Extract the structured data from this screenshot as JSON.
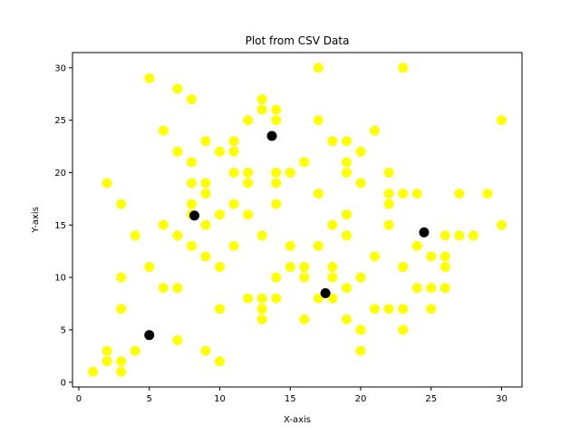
{
  "chart_data": {
    "type": "scatter",
    "title": "Plot from CSV Data",
    "xlabel": "X-axis",
    "ylabel": "Y-axis",
    "xlim": [
      -0.45,
      31.45
    ],
    "ylim": [
      -0.45,
      31.45
    ],
    "xticks": [
      0,
      5,
      10,
      15,
      20,
      25,
      30
    ],
    "yticks": [
      0,
      5,
      10,
      15,
      20,
      25,
      30
    ],
    "grid": false,
    "series": [
      {
        "color": "#ffff00",
        "points": [
          [
            1,
            1
          ],
          [
            2,
            2
          ],
          [
            2,
            3
          ],
          [
            2,
            19
          ],
          [
            3,
            1
          ],
          [
            3,
            2
          ],
          [
            3,
            7
          ],
          [
            3,
            10
          ],
          [
            3,
            17
          ],
          [
            4,
            3
          ],
          [
            4,
            14
          ],
          [
            5,
            11
          ],
          [
            5,
            29
          ],
          [
            6,
            9
          ],
          [
            6,
            15
          ],
          [
            6,
            24
          ],
          [
            7,
            4
          ],
          [
            7,
            9
          ],
          [
            7,
            14
          ],
          [
            7,
            22
          ],
          [
            7,
            28
          ],
          [
            8,
            13
          ],
          [
            8,
            16
          ],
          [
            8,
            17
          ],
          [
            8,
            19
          ],
          [
            8,
            21
          ],
          [
            8,
            27
          ],
          [
            9,
            3
          ],
          [
            9,
            12
          ],
          [
            9,
            15
          ],
          [
            9,
            18
          ],
          [
            9,
            19
          ],
          [
            9,
            23
          ],
          [
            10,
            2
          ],
          [
            10,
            7
          ],
          [
            10,
            11
          ],
          [
            10,
            16
          ],
          [
            10,
            22
          ],
          [
            11,
            13
          ],
          [
            11,
            17
          ],
          [
            11,
            20
          ],
          [
            11,
            22
          ],
          [
            11,
            23
          ],
          [
            12,
            8
          ],
          [
            12,
            16
          ],
          [
            12,
            19
          ],
          [
            12,
            20
          ],
          [
            12,
            25
          ],
          [
            13,
            6
          ],
          [
            13,
            7
          ],
          [
            13,
            8
          ],
          [
            13,
            14
          ],
          [
            13,
            26
          ],
          [
            13,
            27
          ],
          [
            14,
            8
          ],
          [
            14,
            10
          ],
          [
            14,
            17
          ],
          [
            14,
            19
          ],
          [
            14,
            20
          ],
          [
            14,
            25
          ],
          [
            14,
            26
          ],
          [
            15,
            11
          ],
          [
            15,
            13
          ],
          [
            15,
            20
          ],
          [
            16,
            6
          ],
          [
            16,
            10
          ],
          [
            16,
            11
          ],
          [
            16,
            21
          ],
          [
            17,
            8
          ],
          [
            17,
            13
          ],
          [
            17,
            18
          ],
          [
            17,
            25
          ],
          [
            17,
            30
          ],
          [
            18,
            8
          ],
          [
            18,
            10
          ],
          [
            18,
            11
          ],
          [
            18,
            15
          ],
          [
            18,
            23
          ],
          [
            19,
            6
          ],
          [
            19,
            9
          ],
          [
            19,
            14
          ],
          [
            19,
            16
          ],
          [
            19,
            20
          ],
          [
            19,
            21
          ],
          [
            19,
            23
          ],
          [
            20,
            3
          ],
          [
            20,
            5
          ],
          [
            20,
            10
          ],
          [
            20,
            19
          ],
          [
            20,
            22
          ],
          [
            21,
            7
          ],
          [
            21,
            12
          ],
          [
            21,
            24
          ],
          [
            22,
            7
          ],
          [
            22,
            15
          ],
          [
            22,
            17
          ],
          [
            22,
            18
          ],
          [
            22,
            20
          ],
          [
            23,
            5
          ],
          [
            23,
            7
          ],
          [
            23,
            11
          ],
          [
            23,
            18
          ],
          [
            23,
            30
          ],
          [
            24,
            9
          ],
          [
            24,
            13
          ],
          [
            24,
            18
          ],
          [
            25,
            7
          ],
          [
            25,
            9
          ],
          [
            25,
            12
          ],
          [
            26,
            9
          ],
          [
            26,
            11
          ],
          [
            26,
            12
          ],
          [
            26,
            14
          ],
          [
            27,
            14
          ],
          [
            27,
            18
          ],
          [
            28,
            14
          ],
          [
            29,
            18
          ],
          [
            30,
            15
          ],
          [
            30,
            25
          ]
        ]
      },
      {
        "color": "#000000",
        "points": [
          [
            5,
            4.5
          ],
          [
            8.2,
            15.9
          ],
          [
            13.7,
            23.5
          ],
          [
            17.5,
            8.5
          ],
          [
            24.5,
            14.3
          ]
        ]
      }
    ]
  }
}
